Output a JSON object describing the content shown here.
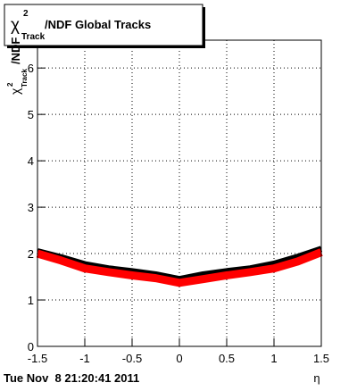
{
  "chart_data": {
    "type": "line",
    "title": {
      "symbol": "χ",
      "sup": "2",
      "sub": "Track",
      "rest": "/NDF  Global Tracks"
    },
    "y_label": {
      "symbol": "χ",
      "sup": "2",
      "sub": "Track",
      "rest": "/NDF"
    },
    "x_label": "η",
    "timestamp": "Tue Nov  8 21:20:41 2011",
    "x": [
      -1.5,
      -1.25,
      -1,
      -0.75,
      -0.5,
      -0.25,
      0,
      0.25,
      0.5,
      0.75,
      1,
      1.25,
      1.5
    ],
    "series": [
      {
        "color": "#000000",
        "values": [
          2.05,
          1.92,
          1.77,
          1.68,
          1.62,
          1.55,
          1.45,
          1.55,
          1.62,
          1.68,
          1.78,
          1.93,
          2.1
        ]
      },
      {
        "color": "#ff0000",
        "values": [
          2.0,
          1.85,
          1.68,
          1.6,
          1.53,
          1.47,
          1.37,
          1.45,
          1.53,
          1.6,
          1.68,
          1.83,
          2.03
        ]
      }
    ],
    "xlim": [
      -1.5,
      1.5
    ],
    "xticks": [
      -1.5,
      -1,
      -0.5,
      0,
      0.5,
      1,
      1.5
    ],
    "ylim": [
      0,
      6.6
    ],
    "yticks": [
      0,
      1,
      2,
      3,
      4,
      5,
      6
    ],
    "grid": true
  }
}
